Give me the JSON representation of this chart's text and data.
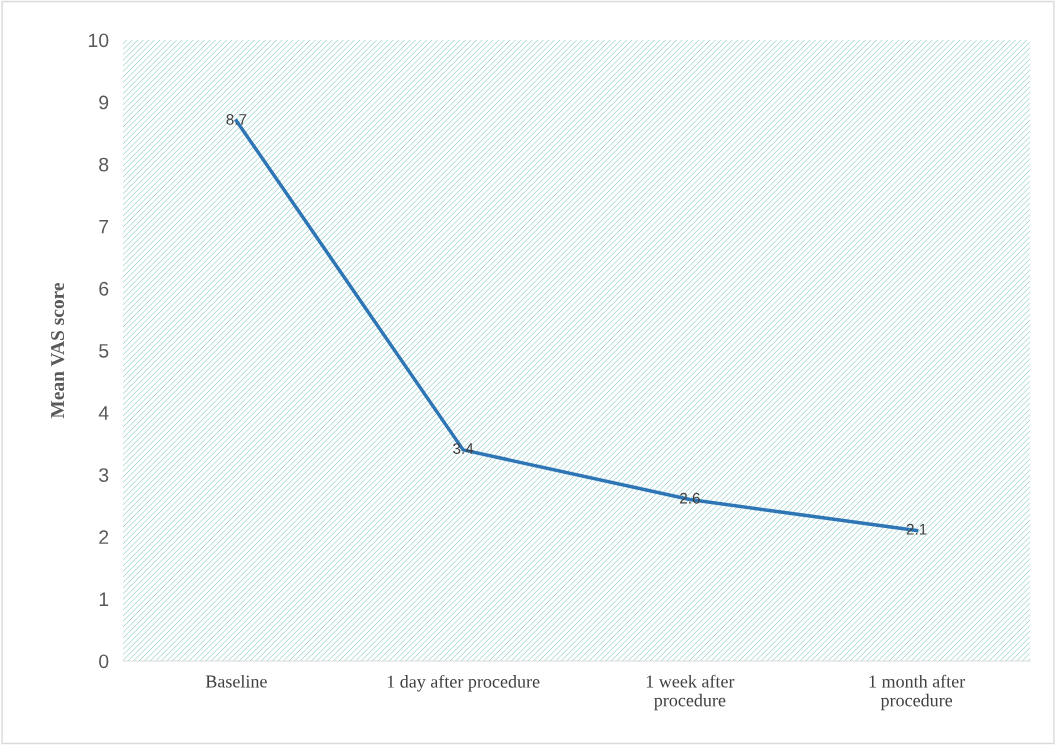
{
  "chart_data": {
    "type": "line",
    "ylabel": "Mean VAS score",
    "categories": [
      "Baseline",
      "1 day after procedure",
      "1 week after\nprocedure",
      "1 month after\nprocedure"
    ],
    "series": [
      {
        "color": "#2e75b6",
        "values": [
          8.7,
          3.4,
          2.6,
          2.1
        ]
      }
    ],
    "ylim": [
      0,
      10
    ],
    "yticks": [
      0,
      1,
      2,
      3,
      4,
      5,
      6,
      7,
      8,
      9,
      10
    ],
    "data_labels": true,
    "grid": false,
    "marker": "none",
    "line_style": "solid"
  }
}
